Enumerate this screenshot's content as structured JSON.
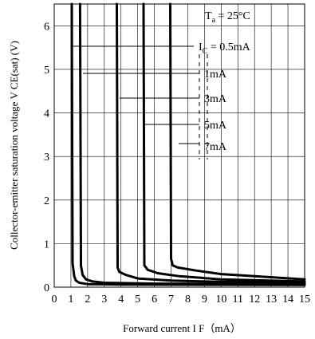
{
  "chart_data": {
    "type": "line",
    "xlabel": "Forward current I F（mA）",
    "ylabel": "Collector-emitter saturation voltage V CE(sat) (V)",
    "xlim": [
      0,
      15
    ],
    "ylim": [
      0,
      6.5
    ],
    "xticks": [
      "0",
      "1",
      "2",
      "3",
      "4",
      "5",
      "6",
      "7",
      "8",
      "9",
      "10",
      "11",
      "12",
      "13",
      "14",
      "15"
    ],
    "yticks": [
      "0",
      "1",
      "2",
      "3",
      "4",
      "5",
      "6"
    ],
    "grid": true,
    "condition": {
      "label": "T",
      "sub": "a",
      "rest": " = 25°C"
    },
    "series": [
      {
        "name": "I C = 0.5mA",
        "x": [
          1.05,
          1.1,
          1.2,
          1.3,
          1.5,
          2.0,
          4.0,
          15.0
        ],
        "y": [
          6.5,
          0.55,
          0.25,
          0.15,
          0.1,
          0.07,
          0.06,
          0.05
        ]
      },
      {
        "name": "1mA",
        "x": [
          1.55,
          1.6,
          1.7,
          1.9,
          2.3,
          3.0,
          6.0,
          15.0
        ],
        "y": [
          6.5,
          0.5,
          0.28,
          0.18,
          0.13,
          0.1,
          0.08,
          0.07
        ]
      },
      {
        "name": "3mA",
        "x": [
          3.75,
          3.8,
          3.9,
          4.3,
          5.0,
          7.0,
          10.0,
          15.0
        ],
        "y": [
          6.5,
          0.45,
          0.35,
          0.28,
          0.2,
          0.15,
          0.12,
          0.1
        ]
      },
      {
        "name": "5mA",
        "x": [
          5.35,
          5.4,
          5.6,
          6.2,
          7.5,
          10.0,
          15.0
        ],
        "y": [
          6.5,
          0.5,
          0.4,
          0.32,
          0.25,
          0.18,
          0.13
        ]
      },
      {
        "name": "7mA",
        "x": [
          6.95,
          7.0,
          7.1,
          7.4,
          8.5,
          10.0,
          12.0,
          15.0
        ],
        "y": [
          6.5,
          0.65,
          0.5,
          0.45,
          0.38,
          0.3,
          0.25,
          0.18
        ]
      }
    ],
    "labels": [
      {
        "main": "I",
        "sub": "C",
        "rest": " = 0.5mA"
      },
      {
        "main": "1mA",
        "sub": "",
        "rest": ""
      },
      {
        "main": "3mA",
        "sub": "",
        "rest": ""
      },
      {
        "main": "5mA",
        "sub": "",
        "rest": ""
      },
      {
        "main": "7mA",
        "sub": "",
        "rest": ""
      }
    ]
  }
}
